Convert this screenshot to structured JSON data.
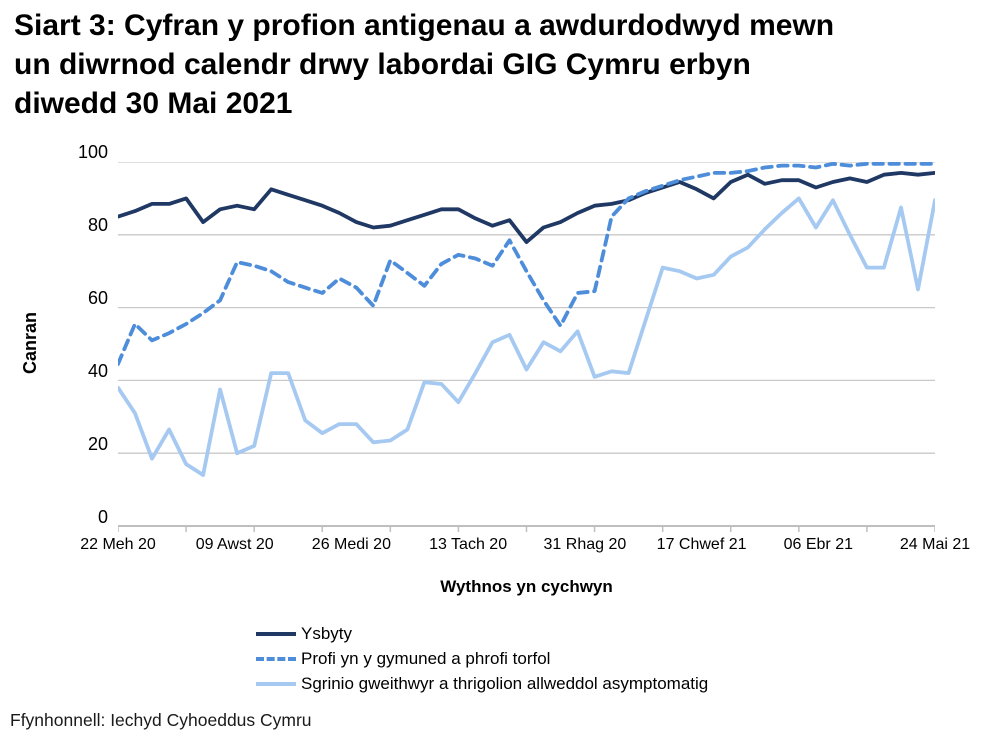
{
  "title_lines": [
    "Siart 3: Cyfran y profion antigenau a awdurdodwyd mewn",
    "un diwrnod calendr drwy labordai GIG Cymru erbyn",
    "diwedd 30 Mai 2021"
  ],
  "source": "Ffynhonnell: Iechyd Cyhoeddus Cymru",
  "chart_data": {
    "type": "line",
    "title": "Siart 3: Cyfran y profion antigenau a awdurdodwyd mewn un diwrnod calendr drwy labordai GIG Cymru erbyn diwedd 30 Mai 2021",
    "xlabel": "Wythnos yn cychwyn",
    "ylabel": "Canran",
    "ylim": [
      0,
      100
    ],
    "y_tick_labels": [
      "100",
      "80",
      "60",
      "40",
      "20",
      "0"
    ],
    "x_tick_labels": [
      "22 Meh 20",
      "09 Awst 20",
      "26 Medi 20",
      "13 Tach 20",
      "31 Rhag 20",
      "17 Chwef 21",
      "06 Ebr 21",
      "24 Mai 21"
    ],
    "n_points": 49,
    "grid": "horizontal",
    "minor_x_ticks": 13,
    "legend_position": "bottom-left",
    "axis_color": "#bfbfbf",
    "grid_color": "#c9c9c9",
    "series": [
      {
        "name": "Ysbyty",
        "color": "#1f3864",
        "style": "solid",
        "values": [
          85,
          86.5,
          88.5,
          88.5,
          90,
          83.5,
          87,
          88,
          87,
          92.5,
          91,
          89.5,
          88,
          86,
          83.5,
          82,
          82.5,
          84,
          85.5,
          87,
          87,
          84.5,
          82.5,
          84,
          78,
          82,
          83.5,
          86,
          88,
          88.5,
          89.5,
          91.5,
          93,
          94.5,
          92.5,
          90,
          94.5,
          96.5,
          94,
          95,
          95,
          93,
          94.5,
          95.5,
          94.5,
          96.5,
          97,
          96.5,
          97
        ]
      },
      {
        "name": "Profi yn y gymuned a phrofi torfol",
        "color": "#4d8dda",
        "style": "dashed",
        "values": [
          44.5,
          55.5,
          51,
          53,
          55.5,
          58.5,
          62,
          72.5,
          71.5,
          70,
          67,
          65.5,
          64,
          68,
          65.5,
          60.5,
          73,
          69.5,
          66,
          72,
          74.5,
          73.5,
          71.5,
          78.5,
          70,
          62,
          55,
          64,
          64.5,
          85,
          90,
          92,
          93.5,
          95,
          96,
          97,
          97,
          97.5,
          98.5,
          99,
          99,
          98.5,
          99.5,
          99,
          99.5,
          99.5,
          99.5,
          99.5,
          99.5
        ]
      },
      {
        "name": "Sgrinio gweithwyr a thrigolion allweddol asymptomatig",
        "color": "#a6c9f2",
        "style": "solid",
        "values": [
          38,
          31,
          18.5,
          26.5,
          17,
          14,
          37.5,
          20,
          22,
          42,
          42,
          29,
          25.5,
          28,
          28,
          23,
          23.5,
          26.5,
          39.5,
          39,
          34,
          42,
          50.5,
          52.5,
          43,
          50.5,
          48,
          53.5,
          41,
          42.5,
          42,
          56.5,
          71,
          70,
          68,
          69,
          74,
          76.5,
          81.5,
          86,
          90,
          82,
          89.5,
          80,
          71,
          71,
          87.5,
          65,
          89.5
        ]
      }
    ]
  }
}
